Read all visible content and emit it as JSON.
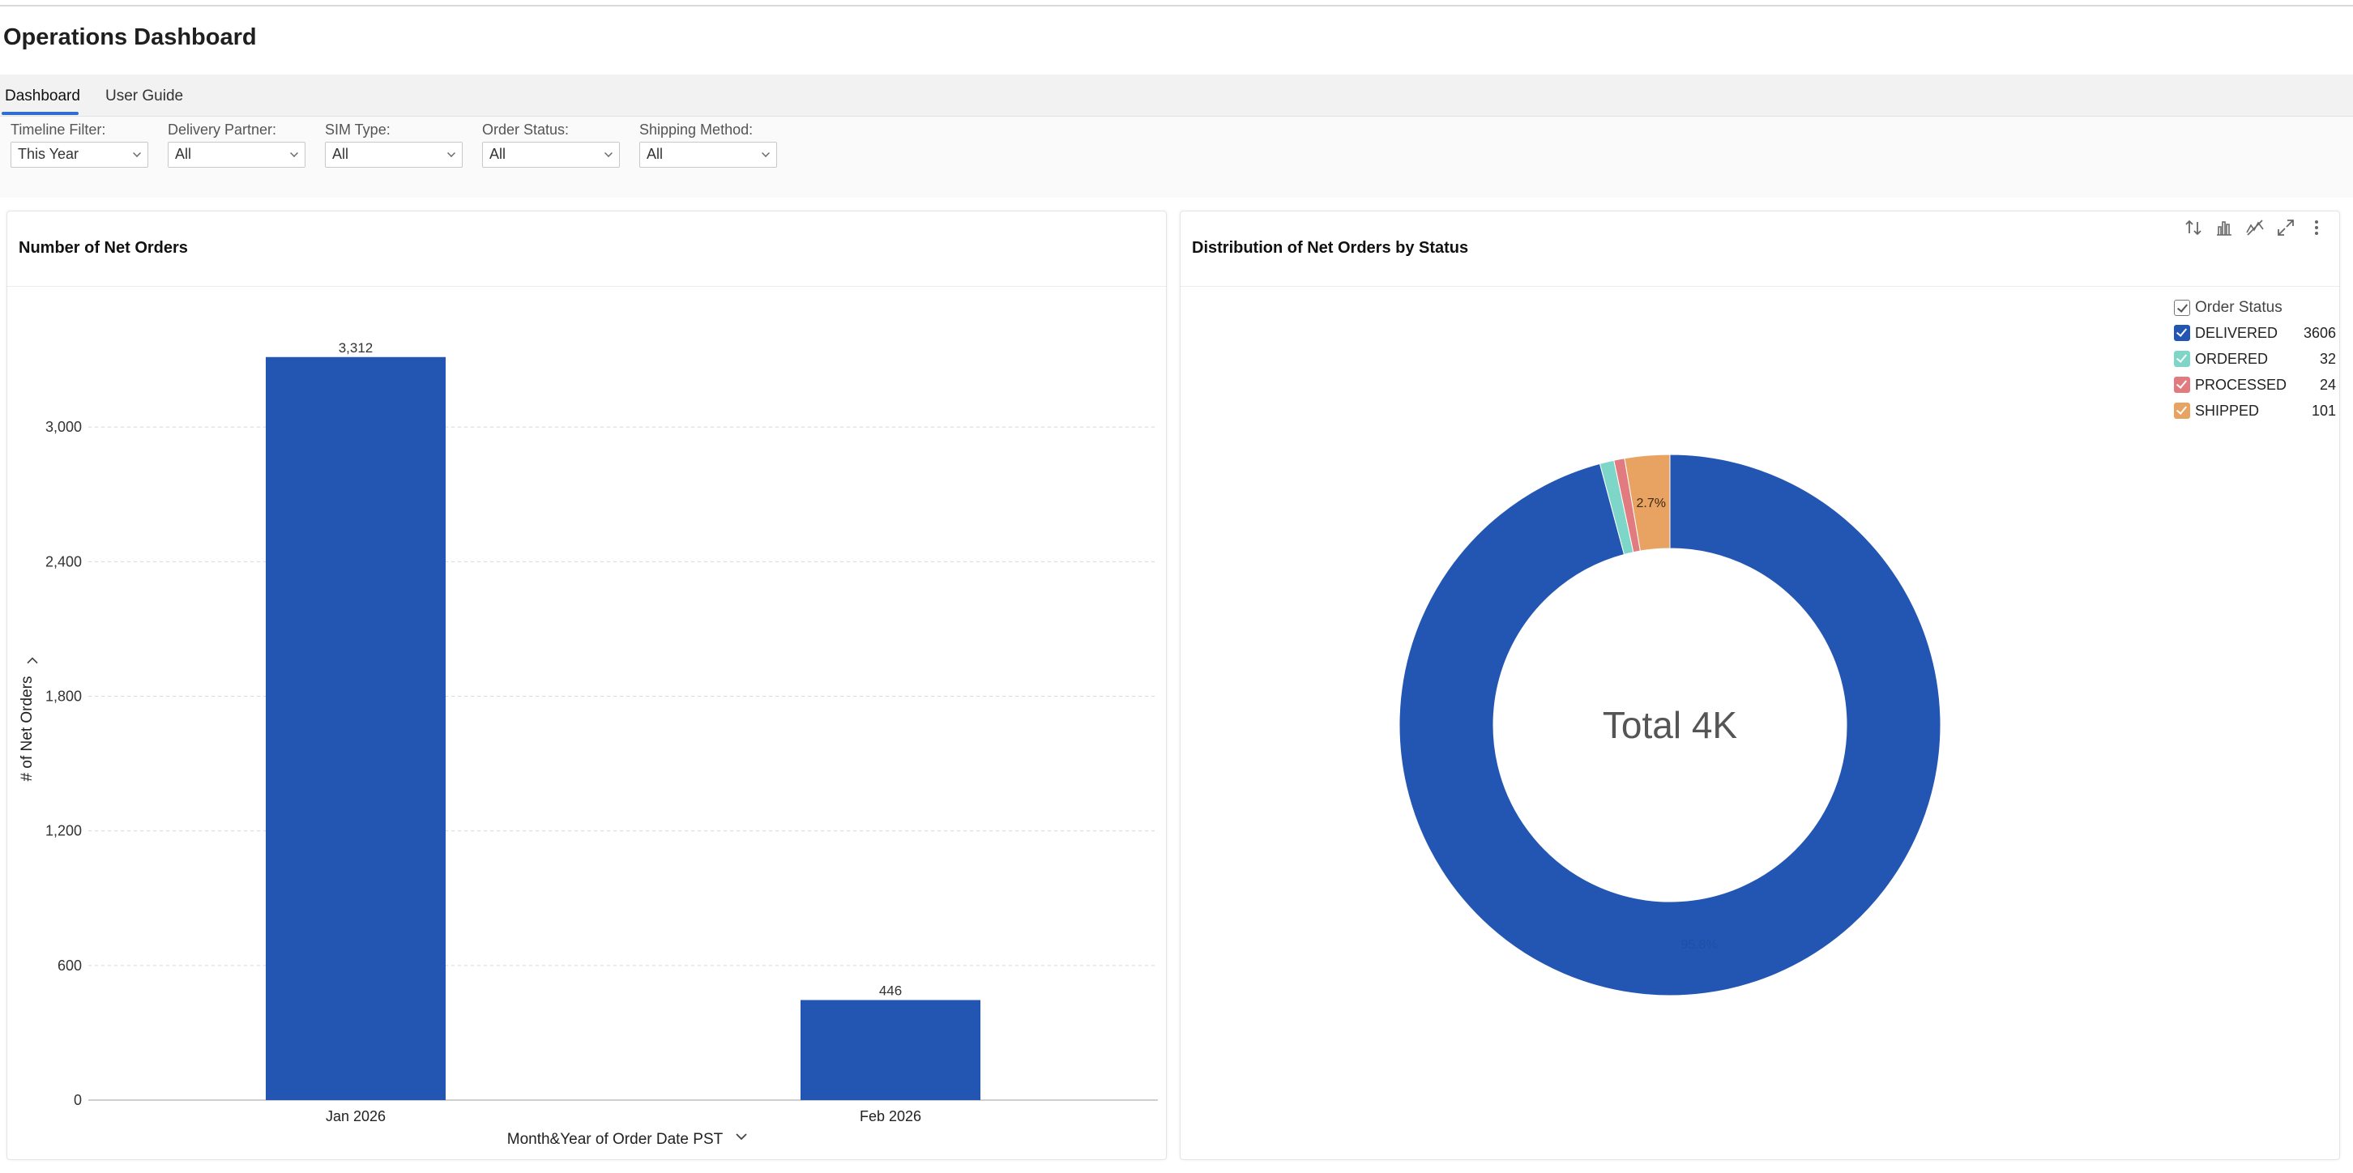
{
  "app": {
    "title": "Operations Dashboard"
  },
  "tabs": [
    {
      "label": "Dashboard",
      "active": true
    },
    {
      "label": "User Guide",
      "active": false
    }
  ],
  "filters": [
    {
      "label": "Timeline Filter:",
      "value": "This Year"
    },
    {
      "label": "Delivery Partner:",
      "value": "All"
    },
    {
      "label": "SIM Type:",
      "value": "All"
    },
    {
      "label": "Order Status:",
      "value": "All"
    },
    {
      "label": "Shipping Method:",
      "value": "All"
    }
  ],
  "left_panel": {
    "title": "Number of Net Orders"
  },
  "right_panel": {
    "title": "Distribution of Net Orders by Status",
    "legend_title": "Order Status",
    "center_label": "Total 4K"
  },
  "colors": {
    "accent": "#2f6fd1",
    "bar": "#2356b3",
    "delivered": "#2356b3",
    "ordered": "#7ed6c8",
    "processed": "#e27b80",
    "shipped": "#e8a261"
  },
  "icons": [
    "sort-icon",
    "bar-chart-icon",
    "chart-type-icon",
    "expand-icon",
    "more-icon"
  ],
  "chart_data": [
    {
      "type": "bar",
      "title": "Number of Net Orders",
      "categories": [
        "Jan 2026",
        "Feb 2026"
      ],
      "values": [
        3312,
        446
      ],
      "data_labels": [
        "3,312",
        "446"
      ],
      "xlabel": "Month&Year of Order Date PST",
      "ylabel": "# of Net Orders",
      "ylim": [
        0,
        3600
      ],
      "yticks": [
        0,
        600,
        1200,
        1800,
        2400,
        3000
      ],
      "ytick_labels": [
        "0",
        "600",
        "1,200",
        "1,800",
        "2,400",
        "3,000"
      ],
      "grid": true
    },
    {
      "type": "pie",
      "title": "Distribution of Net Orders by Status",
      "labels": [
        "DELIVERED",
        "ORDERED",
        "PROCESSED",
        "SHIPPED"
      ],
      "values": [
        3606,
        32,
        24,
        101
      ],
      "slice_labels": [
        "95.8%",
        "",
        "",
        "2.7%"
      ],
      "legend": "top-right",
      "center_text": "Total 4K"
    }
  ]
}
